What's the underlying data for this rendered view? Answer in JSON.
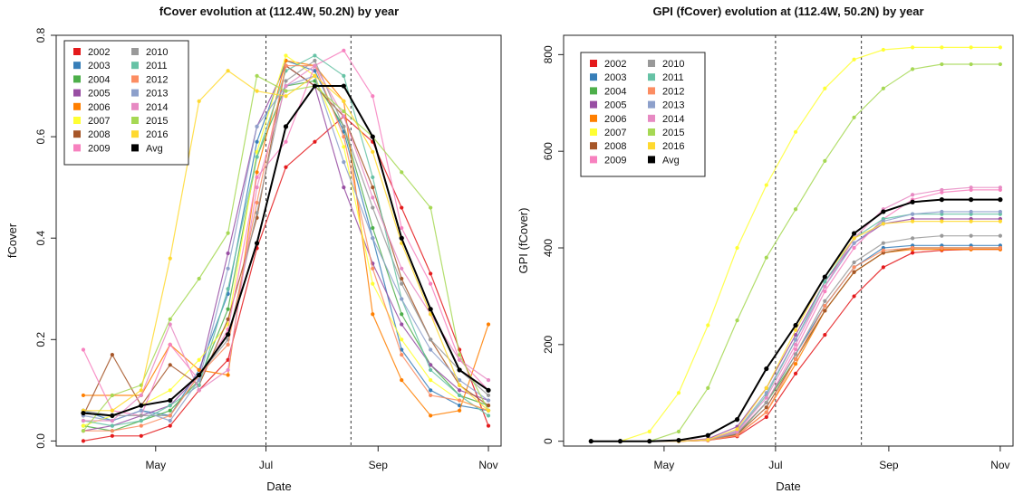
{
  "chart_data": [
    {
      "type": "line",
      "title": "fCover evolution at (112.4W, 50.2N) by year",
      "xlabel": "Date",
      "ylabel": "fCover",
      "x_ticks": [
        "May",
        "Jul",
        "Sep",
        "Nov"
      ],
      "y_ticks": [
        "0.0",
        "0.2",
        "0.4",
        "0.6",
        "0.8"
      ],
      "ylim": [
        -0.01,
        0.8
      ],
      "vlines": [
        "Jul",
        "Aug 17"
      ],
      "legend_position": "top-left",
      "x": [
        "Mar 22",
        "Apr 7",
        "Apr 23",
        "May 9",
        "May 25",
        "Jun 10",
        "Jun 26",
        "Jul 12",
        "Jul 28",
        "Aug 13",
        "Aug 29",
        "Sep 14",
        "Sep 30",
        "Oct 16",
        "Nov 1"
      ],
      "series": [
        {
          "name": "2002",
          "color": "#e41a1c",
          "values": [
            0.0,
            0.01,
            0.01,
            0.03,
            0.1,
            0.16,
            0.38,
            0.54,
            0.59,
            0.64,
            0.59,
            0.46,
            0.33,
            0.18,
            0.03
          ]
        },
        {
          "name": "2003",
          "color": "#377eb8",
          "values": [
            0.06,
            0.04,
            0.06,
            0.05,
            0.14,
            0.29,
            0.59,
            0.75,
            0.73,
            0.61,
            0.4,
            0.18,
            0.1,
            0.07,
            0.06
          ]
        },
        {
          "name": "2004",
          "color": "#4daf4a",
          "values": [
            0.03,
            0.02,
            0.04,
            0.06,
            0.12,
            0.26,
            0.56,
            0.7,
            0.71,
            0.62,
            0.42,
            0.25,
            0.15,
            0.09,
            0.07
          ]
        },
        {
          "name": "2005",
          "color": "#984ea3",
          "values": [
            0.02,
            0.03,
            0.05,
            0.07,
            0.13,
            0.37,
            0.62,
            0.74,
            0.7,
            0.5,
            0.35,
            0.23,
            0.15,
            0.1,
            0.08
          ]
        },
        {
          "name": "2006",
          "color": "#ff7f00",
          "values": [
            0.09,
            0.09,
            0.09,
            0.19,
            0.14,
            0.13,
            0.53,
            0.75,
            0.74,
            0.67,
            0.25,
            0.12,
            0.05,
            0.06,
            0.23
          ]
        },
        {
          "name": "2007",
          "color": "#ffff33",
          "values": [
            0.03,
            0.05,
            0.07,
            0.1,
            0.16,
            0.23,
            0.57,
            0.76,
            0.72,
            0.58,
            0.31,
            0.2,
            0.12,
            0.08,
            0.06
          ]
        },
        {
          "name": "2008",
          "color": "#a65628",
          "values": [
            0.05,
            0.17,
            0.07,
            0.15,
            0.11,
            0.24,
            0.44,
            0.74,
            0.7,
            0.64,
            0.5,
            0.32,
            0.2,
            0.11,
            0.07
          ]
        },
        {
          "name": "2009",
          "color": "#f781bf",
          "values": [
            0.18,
            0.06,
            0.05,
            0.19,
            0.12,
            0.22,
            0.52,
            0.59,
            0.74,
            0.77,
            0.68,
            0.42,
            0.31,
            0.16,
            0.1
          ]
        },
        {
          "name": "2010",
          "color": "#999999",
          "values": [
            0.06,
            0.05,
            0.05,
            0.05,
            0.13,
            0.2,
            0.45,
            0.71,
            0.75,
            0.62,
            0.46,
            0.31,
            0.2,
            0.14,
            0.09
          ]
        },
        {
          "name": "2011",
          "color": "#66c2a5",
          "values": [
            0.04,
            0.03,
            0.04,
            0.07,
            0.11,
            0.3,
            0.56,
            0.73,
            0.76,
            0.72,
            0.52,
            0.28,
            0.14,
            0.09,
            0.05
          ]
        },
        {
          "name": "2012",
          "color": "#fc8d62",
          "values": [
            0.02,
            0.02,
            0.03,
            0.05,
            0.13,
            0.19,
            0.47,
            0.74,
            0.74,
            0.6,
            0.34,
            0.17,
            0.09,
            0.08,
            0.06
          ]
        },
        {
          "name": "2013",
          "color": "#8da0cb",
          "values": [
            0.05,
            0.04,
            0.06,
            0.04,
            0.12,
            0.34,
            0.62,
            0.7,
            0.72,
            0.55,
            0.4,
            0.28,
            0.18,
            0.12,
            0.08
          ]
        },
        {
          "name": "2014",
          "color": "#e78ac3",
          "values": [
            0.04,
            0.04,
            0.09,
            0.23,
            0.1,
            0.14,
            0.5,
            0.7,
            0.74,
            0.64,
            0.48,
            0.34,
            0.25,
            0.16,
            0.12
          ]
        },
        {
          "name": "2015",
          "color": "#a6d854",
          "values": [
            0.02,
            0.09,
            0.11,
            0.24,
            0.32,
            0.41,
            0.72,
            0.69,
            0.7,
            0.65,
            0.6,
            0.53,
            0.46,
            0.17,
            0.06
          ]
        },
        {
          "name": "2016",
          "color": "#ffd92f",
          "values": [
            0.06,
            0.06,
            0.1,
            0.36,
            0.67,
            0.73,
            0.69,
            0.68,
            0.72,
            0.67,
            0.57,
            0.39,
            0.25,
            0.11,
            0.06
          ]
        },
        {
          "name": "Avg",
          "color": "#000000",
          "values": [
            0.055,
            0.05,
            0.07,
            0.08,
            0.13,
            0.21,
            0.39,
            0.62,
            0.7,
            0.7,
            0.6,
            0.4,
            0.26,
            0.14,
            0.1
          ]
        }
      ]
    },
    {
      "type": "line",
      "title": "GPI (fCover) evolution at (112.4W, 50.2N) by year",
      "xlabel": "Date",
      "ylabel": "GPI (fCover)",
      "x_ticks": [
        "May",
        "Jul",
        "Sep",
        "Nov"
      ],
      "y_ticks": [
        "0",
        "200",
        "400",
        "600",
        "800"
      ],
      "ylim": [
        -10,
        840
      ],
      "vlines": [
        "Jul",
        "Aug 17"
      ],
      "legend_position": "top-left",
      "x": [
        "Mar 22",
        "Apr 7",
        "Apr 23",
        "May 9",
        "May 25",
        "Jun 10",
        "Jun 26",
        "Jul 12",
        "Jul 28",
        "Aug 13",
        "Aug 29",
        "Sep 14",
        "Sep 30",
        "Oct 16",
        "Nov 1"
      ],
      "series": [
        {
          "name": "2002",
          "color": "#e41a1c",
          "values": [
            0,
            0,
            0,
            0,
            2,
            10,
            50,
            140,
            220,
            300,
            360,
            390,
            395,
            397,
            397
          ]
        },
        {
          "name": "2003",
          "color": "#377eb8",
          "values": [
            0,
            0,
            0,
            0,
            3,
            15,
            80,
            180,
            280,
            360,
            400,
            405,
            405,
            405,
            405
          ]
        },
        {
          "name": "2004",
          "color": "#4daf4a",
          "values": [
            0,
            0,
            0,
            0,
            3,
            14,
            80,
            170,
            270,
            350,
            390,
            400,
            400,
            400,
            400
          ]
        },
        {
          "name": "2005",
          "color": "#984ea3",
          "values": [
            0,
            0,
            0,
            0,
            5,
            30,
            110,
            220,
            330,
            410,
            450,
            460,
            460,
            460,
            460
          ]
        },
        {
          "name": "2006",
          "color": "#ff7f00",
          "values": [
            0,
            0,
            0,
            0,
            2,
            12,
            60,
            160,
            270,
            350,
            390,
            397,
            397,
            397,
            397
          ]
        },
        {
          "name": "2007",
          "color": "#ffff33",
          "values": [
            0,
            0,
            20,
            100,
            240,
            400,
            530,
            640,
            730,
            790,
            810,
            815,
            815,
            815,
            815
          ]
        },
        {
          "name": "2008",
          "color": "#a65628",
          "values": [
            0,
            0,
            0,
            0,
            2,
            14,
            70,
            170,
            270,
            350,
            390,
            400,
            400,
            400,
            400
          ]
        },
        {
          "name": "2009",
          "color": "#f781bf",
          "values": [
            0,
            0,
            0,
            0,
            3,
            18,
            80,
            190,
            310,
            400,
            460,
            500,
            515,
            520,
            520
          ]
        },
        {
          "name": "2010",
          "color": "#999999",
          "values": [
            0,
            0,
            0,
            0,
            3,
            16,
            80,
            180,
            290,
            370,
            410,
            420,
            425,
            425,
            425
          ]
        },
        {
          "name": "2011",
          "color": "#66c2a5",
          "values": [
            0,
            0,
            0,
            0,
            3,
            20,
            95,
            210,
            330,
            420,
            460,
            470,
            470,
            470,
            470
          ]
        },
        {
          "name": "2012",
          "color": "#fc8d62",
          "values": [
            0,
            0,
            0,
            0,
            2,
            12,
            60,
            170,
            280,
            360,
            395,
            400,
            400,
            400,
            400
          ]
        },
        {
          "name": "2013",
          "color": "#8da0cb",
          "values": [
            0,
            0,
            0,
            0,
            3,
            22,
            100,
            210,
            320,
            410,
            455,
            470,
            475,
            475,
            475
          ]
        },
        {
          "name": "2014",
          "color": "#e78ac3",
          "values": [
            0,
            0,
            0,
            0,
            4,
            20,
            90,
            200,
            320,
            420,
            480,
            510,
            520,
            525,
            525
          ]
        },
        {
          "name": "2015",
          "color": "#a6d854",
          "values": [
            0,
            0,
            0,
            20,
            110,
            250,
            380,
            480,
            580,
            670,
            730,
            770,
            780,
            780,
            780
          ]
        },
        {
          "name": "2016",
          "color": "#ffd92f",
          "values": [
            0,
            0,
            0,
            0,
            3,
            25,
            110,
            230,
            340,
            420,
            450,
            455,
            455,
            455,
            455
          ]
        },
        {
          "name": "Avg",
          "color": "#000000",
          "values": [
            0,
            0,
            0,
            2,
            12,
            45,
            150,
            240,
            340,
            430,
            475,
            495,
            500,
            500,
            500
          ]
        }
      ]
    }
  ]
}
